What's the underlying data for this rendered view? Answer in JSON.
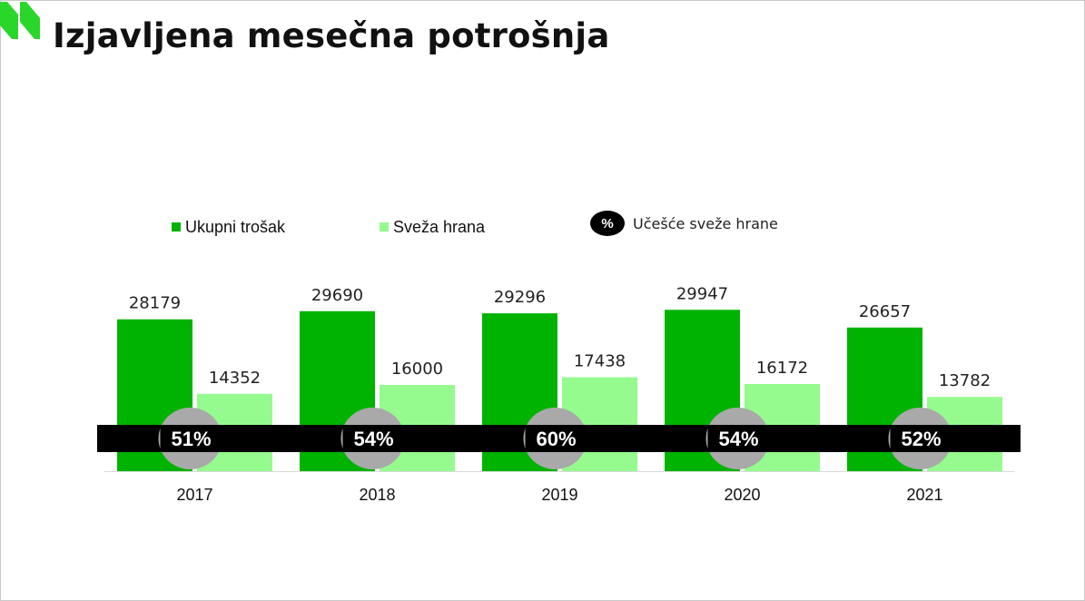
{
  "colors": {
    "total": "#00b300",
    "fresh": "#95fb8e",
    "share_band": "#000000",
    "share_bubble": "#a9a9a9",
    "logo": "#2bd62b"
  },
  "title": "Izjavljena mesečna potrošnja",
  "legend": {
    "total_label": "Ukupni trošak",
    "fresh_label": "Sveža hrana",
    "share_symbol": "%",
    "share_label": "Učešće sveže hrane"
  },
  "chart_data": {
    "type": "bar",
    "categories": [
      "2017",
      "2018",
      "2019",
      "2020",
      "2021"
    ],
    "series": [
      {
        "name": "Ukupni trošak",
        "values": [
          28179,
          29690,
          29296,
          29947,
          26657
        ]
      },
      {
        "name": "Sveža hrana",
        "values": [
          14352,
          16000,
          17438,
          16172,
          13782
        ]
      }
    ],
    "share_labels": [
      "51%",
      "54%",
      "60%",
      "54%",
      "52%"
    ],
    "ylim": [
      0,
      31000
    ],
    "grid": false,
    "legend_position": "top"
  }
}
